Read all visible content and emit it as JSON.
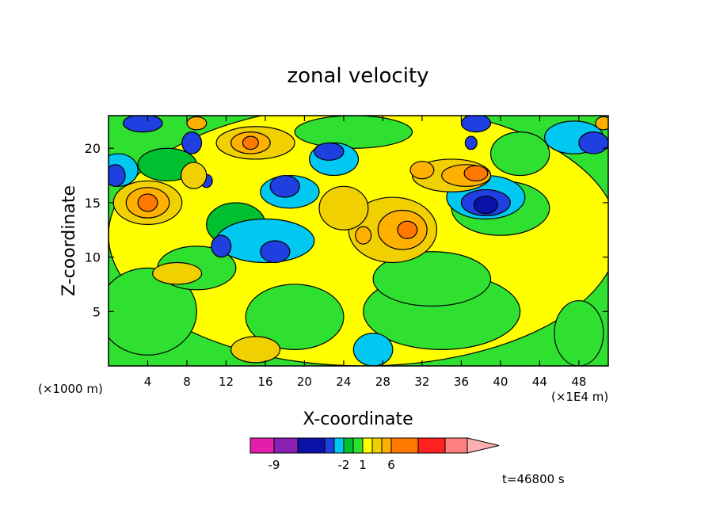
{
  "chart_data": {
    "type": "heatmap",
    "title": "zonal velocity",
    "xlabel": "X-coordinate",
    "ylabel": "Z-coordinate",
    "x_units_note": "(×1000 m)",
    "x_extra_units": "(×1E4 m)",
    "xlim": [
      0,
      51
    ],
    "ylim": [
      0,
      23
    ],
    "x_ticks": [
      4,
      8,
      12,
      16,
      20,
      24,
      28,
      32,
      36,
      40,
      44,
      48
    ],
    "y_ticks": [
      5,
      10,
      15,
      20
    ],
    "time_label": "t=46800 s",
    "colorbar": {
      "labels": [
        {
          "text": "-9",
          "box": 1
        },
        {
          "text": "-2",
          "box": 5
        },
        {
          "text": "1",
          "box": 7
        },
        {
          "text": "6",
          "box": 10
        }
      ],
      "colors": [
        "#e21fa8",
        "#8a1fb4",
        "#0b12a8",
        "#1f3fe0",
        "#00c8f0",
        "#00c030",
        "#30e030",
        "#ffff00",
        "#f0d000",
        "#ffb000",
        "#ff7800",
        "#ff2020",
        "#ff8080",
        "#ffb0b0"
      ]
    },
    "regions": [
      {
        "level": "+1",
        "color": "#ffff00",
        "cx": 26,
        "cy": 12,
        "rx": 26,
        "ry": 12
      },
      {
        "level": "0",
        "color": "#30e030",
        "cx": 4,
        "cy": 5,
        "rx": 5,
        "ry": 4
      },
      {
        "level": "0",
        "color": "#30e030",
        "cx": 19,
        "cy": 4.5,
        "rx": 5,
        "ry": 3
      },
      {
        "level": "0",
        "color": "#30e030",
        "cx": 34,
        "cy": 5,
        "rx": 8,
        "ry": 3.5
      },
      {
        "level": "0",
        "color": "#30e030",
        "cx": 33,
        "cy": 8,
        "rx": 6,
        "ry": 2.5
      },
      {
        "level": "0",
        "color": "#30e030",
        "cx": 40,
        "cy": 14.5,
        "rx": 5,
        "ry": 2.5
      },
      {
        "level": "0",
        "color": "#30e030",
        "cx": 9,
        "cy": 9,
        "rx": 4,
        "ry": 2
      },
      {
        "level": "0",
        "color": "#30e030",
        "cx": 25,
        "cy": 21.5,
        "rx": 6,
        "ry": 1.5
      },
      {
        "level": "0",
        "color": "#30e030",
        "cx": 48,
        "cy": 3,
        "rx": 2.5,
        "ry": 3
      },
      {
        "level": "0",
        "color": "#30e030",
        "cx": 42,
        "cy": 19.5,
        "rx": 3,
        "ry": 2
      },
      {
        "level": "-1",
        "color": "#00c030",
        "cx": 13,
        "cy": 13,
        "rx": 3,
        "ry": 2
      },
      {
        "level": "-1",
        "color": "#00c030",
        "cx": 6,
        "cy": 18.5,
        "rx": 3,
        "ry": 1.5
      },
      {
        "level": "-2",
        "color": "#00c8f0",
        "cx": 16,
        "cy": 11.5,
        "rx": 5,
        "ry": 2
      },
      {
        "level": "-2",
        "color": "#00c8f0",
        "cx": 18.5,
        "cy": 16,
        "rx": 3,
        "ry": 1.5
      },
      {
        "level": "-2",
        "color": "#00c8f0",
        "cx": 27,
        "cy": 1.5,
        "rx": 2,
        "ry": 1.5
      },
      {
        "level": "-2",
        "color": "#00c8f0",
        "cx": 23,
        "cy": 19,
        "rx": 2.5,
        "ry": 1.5
      },
      {
        "level": "-2",
        "color": "#00c8f0",
        "cx": 1,
        "cy": 18,
        "rx": 2,
        "ry": 1.5
      },
      {
        "level": "-2",
        "color": "#00c8f0",
        "cx": 47.5,
        "cy": 21,
        "rx": 3,
        "ry": 1.5
      },
      {
        "level": "-2",
        "color": "#00c8f0",
        "cx": 38.5,
        "cy": 15.5,
        "rx": 4,
        "ry": 2
      },
      {
        "level": "-3",
        "color": "#1f3fe0",
        "cx": 38.5,
        "cy": 15,
        "rx": 2.5,
        "ry": 1.2
      },
      {
        "level": "-3",
        "color": "#1f3fe0",
        "cx": 17,
        "cy": 10.5,
        "rx": 1.5,
        "ry": 1
      },
      {
        "level": "-3",
        "color": "#1f3fe0",
        "cx": 11.5,
        "cy": 11,
        "rx": 1,
        "ry": 1
      },
      {
        "level": "-3",
        "color": "#1f3fe0",
        "cx": 18,
        "cy": 16.5,
        "rx": 1.5,
        "ry": 1
      },
      {
        "level": "-3",
        "color": "#1f3fe0",
        "cx": 0.7,
        "cy": 17.5,
        "rx": 1,
        "ry": 1
      },
      {
        "level": "-3",
        "color": "#1f3fe0",
        "cx": 8.5,
        "cy": 20.5,
        "rx": 1,
        "ry": 1
      },
      {
        "level": "-3",
        "color": "#1f3fe0",
        "cx": 3.5,
        "cy": 22.3,
        "rx": 2,
        "ry": 0.8
      },
      {
        "level": "-3",
        "color": "#1f3fe0",
        "cx": 22.5,
        "cy": 19.7,
        "rx": 1.5,
        "ry": 0.8
      },
      {
        "level": "-3",
        "color": "#1f3fe0",
        "cx": 49.5,
        "cy": 20.5,
        "rx": 1.5,
        "ry": 1
      },
      {
        "level": "-3",
        "color": "#1f3fe0",
        "cx": 37.5,
        "cy": 22.3,
        "rx": 1.5,
        "ry": 0.8
      },
      {
        "level": "-3",
        "color": "#1f3fe0",
        "cx": 37,
        "cy": 20.5,
        "rx": 0.6,
        "ry": 0.6
      },
      {
        "level": "-3",
        "color": "#1f3fe0",
        "cx": 10,
        "cy": 17,
        "rx": 0.6,
        "ry": 0.6
      },
      {
        "level": "-5",
        "color": "#0b12a8",
        "cx": 38.5,
        "cy": 14.8,
        "rx": 1.2,
        "ry": 0.8
      },
      {
        "level": "2",
        "color": "#f0d000",
        "cx": 29,
        "cy": 12.5,
        "rx": 4.5,
        "ry": 3
      },
      {
        "level": "2",
        "color": "#f0d000",
        "cx": 24,
        "cy": 14.5,
        "rx": 2.5,
        "ry": 2
      },
      {
        "level": "2",
        "color": "#f0d000",
        "cx": 35,
        "cy": 17.5,
        "rx": 4,
        "ry": 1.5
      },
      {
        "level": "2",
        "color": "#f0d000",
        "cx": 15,
        "cy": 20.5,
        "rx": 4,
        "ry": 1.5
      },
      {
        "level": "2",
        "color": "#f0d000",
        "cx": 4,
        "cy": 15,
        "rx": 3.5,
        "ry": 2
      },
      {
        "level": "2",
        "color": "#f0d000",
        "cx": 7,
        "cy": 8.5,
        "rx": 2.5,
        "ry": 1
      },
      {
        "level": "2",
        "color": "#f0d000",
        "cx": 15,
        "cy": 1.5,
        "rx": 2.5,
        "ry": 1.2
      },
      {
        "level": "2",
        "color": "#f0d000",
        "cx": 8.7,
        "cy": 17.5,
        "rx": 1.3,
        "ry": 1.2
      },
      {
        "level": "3",
        "color": "#ffb000",
        "cx": 4,
        "cy": 15,
        "rx": 2.2,
        "ry": 1.4
      },
      {
        "level": "3",
        "color": "#ffb000",
        "cx": 30,
        "cy": 12.5,
        "rx": 2.5,
        "ry": 1.8
      },
      {
        "level": "3",
        "color": "#ffb000",
        "cx": 36.5,
        "cy": 17.5,
        "rx": 2.5,
        "ry": 1
      },
      {
        "level": "3",
        "color": "#ffb000",
        "cx": 14.5,
        "cy": 20.5,
        "rx": 2,
        "ry": 1
      },
      {
        "level": "3",
        "color": "#ffb000",
        "cx": 32,
        "cy": 18,
        "rx": 1.2,
        "ry": 0.8
      },
      {
        "level": "3",
        "color": "#ffb000",
        "cx": 26,
        "cy": 12,
        "rx": 0.8,
        "ry": 0.8
      },
      {
        "level": "3",
        "color": "#ffb000",
        "cx": 9,
        "cy": 22.3,
        "rx": 1,
        "ry": 0.6
      },
      {
        "level": "3",
        "color": "#ffb000",
        "cx": 50.5,
        "cy": 22.3,
        "rx": 0.8,
        "ry": 0.6
      },
      {
        "level": "4",
        "color": "#ff7800",
        "cx": 4,
        "cy": 15,
        "rx": 1,
        "ry": 0.8
      },
      {
        "level": "4",
        "color": "#ff7800",
        "cx": 37.5,
        "cy": 17.7,
        "rx": 1.2,
        "ry": 0.7
      },
      {
        "level": "4",
        "color": "#ff7800",
        "cx": 14.5,
        "cy": 20.5,
        "rx": 0.8,
        "ry": 0.6
      },
      {
        "level": "4",
        "color": "#ff7800",
        "cx": 30.5,
        "cy": 12.5,
        "rx": 1,
        "ry": 0.8
      }
    ]
  }
}
